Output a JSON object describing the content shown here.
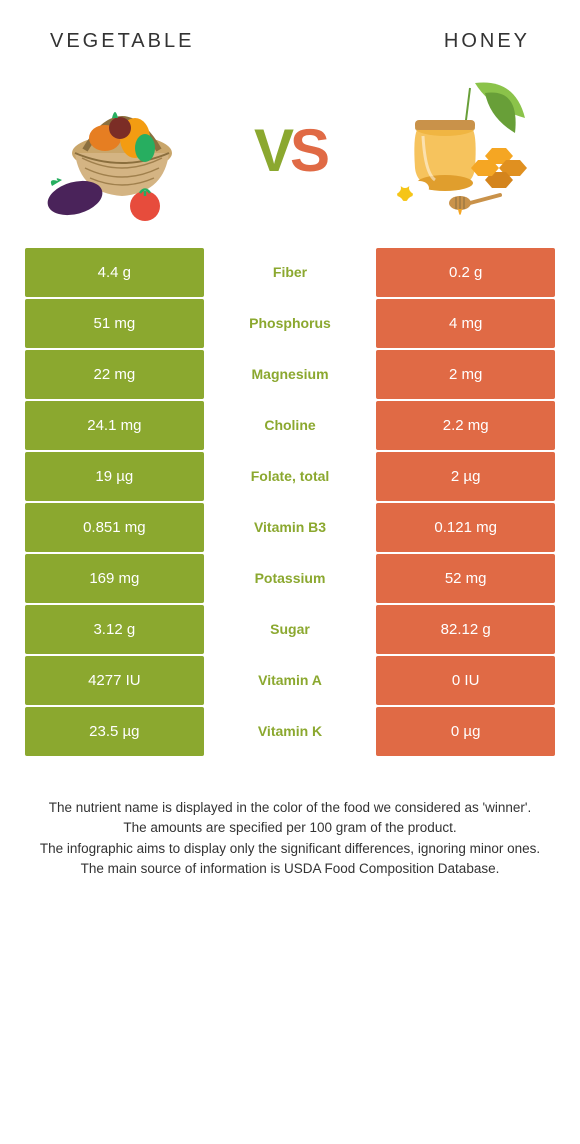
{
  "header": {
    "left": "VEGETABLE",
    "right": "HONEY"
  },
  "vs": {
    "v": "V",
    "s": "S"
  },
  "colors": {
    "green": "#8ba82f",
    "orange": "#e06a45",
    "white": "#ffffff"
  },
  "rows": [
    {
      "left": "4.4 g",
      "mid": "Fiber",
      "right": "0.2 g",
      "winner": "left"
    },
    {
      "left": "51 mg",
      "mid": "Phosphorus",
      "right": "4 mg",
      "winner": "left"
    },
    {
      "left": "22 mg",
      "mid": "Magnesium",
      "right": "2 mg",
      "winner": "left"
    },
    {
      "left": "24.1 mg",
      "mid": "Choline",
      "right": "2.2 mg",
      "winner": "left"
    },
    {
      "left": "19 µg",
      "mid": "Folate, total",
      "right": "2 µg",
      "winner": "left"
    },
    {
      "left": "0.851 mg",
      "mid": "Vitamin B3",
      "right": "0.121 mg",
      "winner": "left"
    },
    {
      "left": "169 mg",
      "mid": "Potassium",
      "right": "52 mg",
      "winner": "left"
    },
    {
      "left": "3.12 g",
      "mid": "Sugar",
      "right": "82.12 g",
      "winner": "left"
    },
    {
      "left": "4277 IU",
      "mid": "Vitamin A",
      "right": "0 IU",
      "winner": "left"
    },
    {
      "left": "23.5 µg",
      "mid": "Vitamin K",
      "right": "0 µg",
      "winner": "left"
    }
  ],
  "footer": {
    "line1": "The nutrient name is displayed in the color of the food we considered as 'winner'.",
    "line2": "The amounts are specified per 100 gram of the product.",
    "line3": "The infographic aims to display only the significant differences, ignoring minor ones.",
    "line4": "The main source of information is USDA Food Composition Database."
  }
}
